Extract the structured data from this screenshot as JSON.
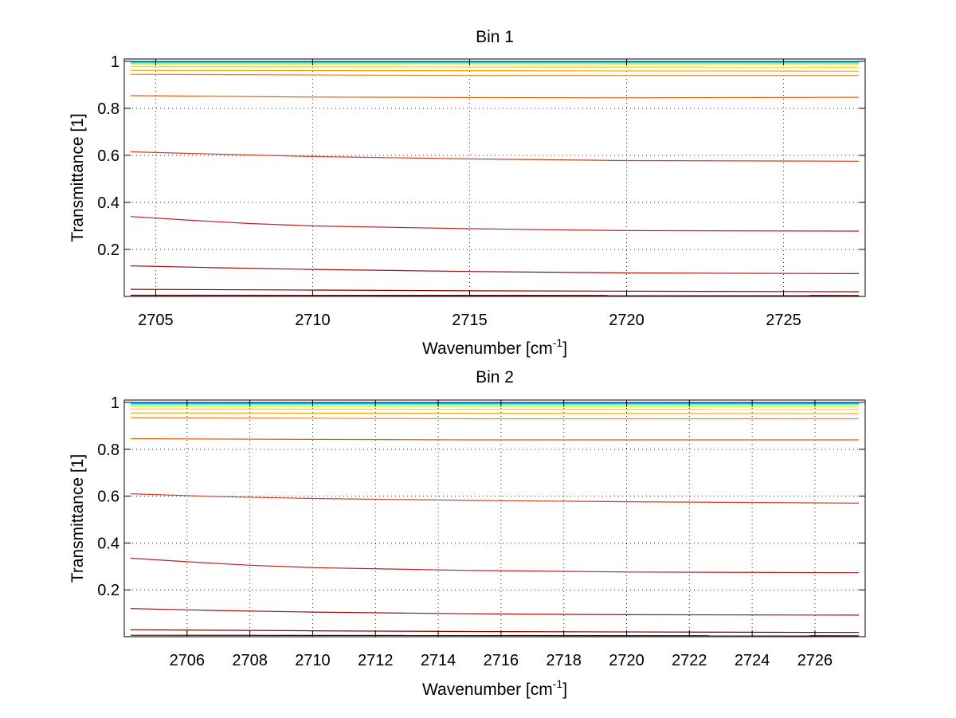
{
  "chart_data": [
    {
      "type": "line",
      "title": "Bin 1",
      "xlabel": "Wavenumber [cm",
      "xlabel_sup": "-1",
      "xlabel_end": "]",
      "ylabel": "Transmittance [1]",
      "xlim": [
        2704.0,
        2727.6
      ],
      "ylim": [
        0,
        1.01
      ],
      "xticks": [
        2705,
        2710,
        2715,
        2720,
        2725
      ],
      "yticks": [
        0.2,
        0.4,
        0.6,
        0.8,
        1
      ],
      "ytick_labels": [
        "0.2",
        "0.4",
        "0.6",
        "0.8",
        "1"
      ],
      "grid": true,
      "series": [
        {
          "color": "#00008f",
          "values": [
            [
              2704.2,
              0.999
            ],
            [
              2727.4,
              0.999
            ]
          ]
        },
        {
          "color": "#0060ff",
          "values": [
            [
              2704.2,
              0.997
            ],
            [
              2727.4,
              0.997
            ]
          ]
        },
        {
          "color": "#00d0d0",
          "values": [
            [
              2704.2,
              0.995
            ],
            [
              2727.4,
              0.995
            ]
          ]
        },
        {
          "color": "#60ff90",
          "values": [
            [
              2704.2,
              0.992
            ],
            [
              2727.4,
              0.992
            ]
          ]
        },
        {
          "color": "#d8f000",
          "values": [
            [
              2704.2,
              0.987
            ],
            [
              2727.4,
              0.986
            ]
          ]
        },
        {
          "color": "#ffd000",
          "values": [
            [
              2704.2,
              0.977
            ],
            [
              2727.4,
              0.975
            ]
          ]
        },
        {
          "color": "#ffa000",
          "values": [
            [
              2704.2,
              0.962
            ],
            [
              2727.4,
              0.958
            ]
          ]
        },
        {
          "color": "#f08020",
          "values": [
            [
              2704.2,
              0.945
            ],
            [
              2715.0,
              0.94
            ],
            [
              2727.4,
              0.94
            ]
          ]
        },
        {
          "color": "#e06010",
          "values": [
            [
              2704.2,
              0.854
            ],
            [
              2710.0,
              0.848
            ],
            [
              2715.0,
              0.846
            ],
            [
              2720.0,
              0.845
            ],
            [
              2727.4,
              0.847
            ]
          ]
        },
        {
          "color": "#d04020",
          "values": [
            [
              2704.2,
              0.615
            ],
            [
              2707.0,
              0.605
            ],
            [
              2710.0,
              0.595
            ],
            [
              2715.0,
              0.585
            ],
            [
              2720.0,
              0.578
            ],
            [
              2727.4,
              0.575
            ]
          ]
        },
        {
          "color": "#c02020",
          "values": [
            [
              2704.2,
              0.34
            ],
            [
              2706.0,
              0.325
            ],
            [
              2708.0,
              0.31
            ],
            [
              2710.0,
              0.3
            ],
            [
              2715.0,
              0.288
            ],
            [
              2720.0,
              0.28
            ],
            [
              2727.4,
              0.278
            ]
          ]
        },
        {
          "color": "#a01010",
          "values": [
            [
              2704.2,
              0.13
            ],
            [
              2707.0,
              0.122
            ],
            [
              2710.0,
              0.115
            ],
            [
              2715.0,
              0.106
            ],
            [
              2720.0,
              0.1
            ],
            [
              2727.4,
              0.097
            ]
          ]
        },
        {
          "color": "#800000",
          "values": [
            [
              2704.2,
              0.03
            ],
            [
              2710.0,
              0.027
            ],
            [
              2715.0,
              0.024
            ],
            [
              2727.4,
              0.02
            ]
          ]
        },
        {
          "color": "#500000",
          "values": [
            [
              2704.2,
              0.005
            ],
            [
              2727.4,
              0.004
            ]
          ]
        }
      ]
    },
    {
      "type": "line",
      "title": "Bin 2",
      "xlabel": "Wavenumber [cm",
      "xlabel_sup": "-1",
      "xlabel_end": "]",
      "ylabel": "Transmittance [1]",
      "xlim": [
        2704.0,
        2727.6
      ],
      "ylim": [
        0,
        1.01
      ],
      "xticks": [
        2706,
        2708,
        2710,
        2712,
        2714,
        2716,
        2718,
        2720,
        2722,
        2724,
        2726
      ],
      "yticks": [
        0.2,
        0.4,
        0.6,
        0.8,
        1
      ],
      "ytick_labels": [
        "0.2",
        "0.4",
        "0.6",
        "0.8",
        "1"
      ],
      "grid": true,
      "series": [
        {
          "color": "#00008f",
          "values": [
            [
              2704.2,
              0.999
            ],
            [
              2727.4,
              0.999
            ]
          ]
        },
        {
          "color": "#0060ff",
          "values": [
            [
              2704.2,
              0.997
            ],
            [
              2727.4,
              0.997
            ]
          ]
        },
        {
          "color": "#00d0d0",
          "values": [
            [
              2704.2,
              0.994
            ],
            [
              2727.4,
              0.994
            ]
          ]
        },
        {
          "color": "#60ff90",
          "values": [
            [
              2704.2,
              0.99
            ],
            [
              2727.4,
              0.99
            ]
          ]
        },
        {
          "color": "#d8f000",
          "values": [
            [
              2704.2,
              0.983
            ],
            [
              2727.4,
              0.982
            ]
          ]
        },
        {
          "color": "#ffd000",
          "values": [
            [
              2704.2,
              0.972
            ],
            [
              2727.4,
              0.97
            ]
          ]
        },
        {
          "color": "#ffa000",
          "values": [
            [
              2704.2,
              0.955
            ],
            [
              2727.4,
              0.952
            ]
          ]
        },
        {
          "color": "#f08020",
          "values": [
            [
              2704.2,
              0.935
            ],
            [
              2715.0,
              0.93
            ],
            [
              2727.4,
              0.93
            ]
          ]
        },
        {
          "color": "#e06010",
          "values": [
            [
              2704.2,
              0.845
            ],
            [
              2710.0,
              0.842
            ],
            [
              2715.0,
              0.84
            ],
            [
              2720.0,
              0.84
            ],
            [
              2727.4,
              0.84
            ]
          ]
        },
        {
          "color": "#d04020",
          "values": [
            [
              2704.2,
              0.61
            ],
            [
              2707.0,
              0.598
            ],
            [
              2710.0,
              0.59
            ],
            [
              2715.0,
              0.582
            ],
            [
              2720.0,
              0.576
            ],
            [
              2727.4,
              0.57
            ]
          ]
        },
        {
          "color": "#c02020",
          "values": [
            [
              2704.2,
              0.335
            ],
            [
              2706.0,
              0.32
            ],
            [
              2708.0,
              0.305
            ],
            [
              2710.0,
              0.295
            ],
            [
              2715.0,
              0.283
            ],
            [
              2720.0,
              0.276
            ],
            [
              2727.4,
              0.273
            ]
          ]
        },
        {
          "color": "#a01010",
          "values": [
            [
              2704.2,
              0.12
            ],
            [
              2707.0,
              0.112
            ],
            [
              2710.0,
              0.105
            ],
            [
              2715.0,
              0.098
            ],
            [
              2720.0,
              0.094
            ],
            [
              2727.4,
              0.092
            ]
          ]
        },
        {
          "color": "#800000",
          "values": [
            [
              2704.2,
              0.03
            ],
            [
              2710.0,
              0.025
            ],
            [
              2715.0,
              0.022
            ],
            [
              2727.4,
              0.018
            ]
          ]
        },
        {
          "color": "#500000",
          "values": [
            [
              2704.2,
              0.006
            ],
            [
              2727.4,
              0.004
            ]
          ]
        }
      ]
    }
  ]
}
